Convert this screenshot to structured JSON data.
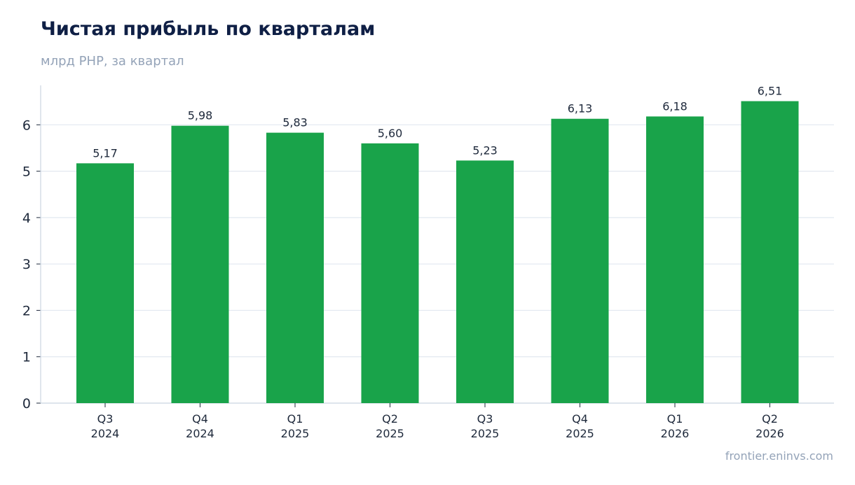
{
  "title": "Чистая прибыль по кварталам",
  "subtitle": "млрд PHP, за квартал",
  "footer": "frontier.eninvs.com",
  "colors": {
    "bar": "#19a34a",
    "grid": "#e2e8f0",
    "axis": "#cbd5e1",
    "title": "#0f1f45",
    "text": "#1e293b",
    "muted": "#94a3b8"
  },
  "chart_data": {
    "type": "bar",
    "categories": [
      [
        "Q3",
        "2024"
      ],
      [
        "Q4",
        "2024"
      ],
      [
        "Q1",
        "2025"
      ],
      [
        "Q2",
        "2025"
      ],
      [
        "Q3",
        "2025"
      ],
      [
        "Q4",
        "2025"
      ],
      [
        "Q1",
        "2026"
      ],
      [
        "Q2",
        "2026"
      ]
    ],
    "values": [
      5.17,
      5.98,
      5.83,
      5.6,
      5.23,
      6.13,
      6.18,
      6.51
    ],
    "value_labels": [
      "5,17",
      "5,98",
      "5,83",
      "5,60",
      "5,23",
      "6,13",
      "6,18",
      "6,51"
    ],
    "yticks": [
      0,
      1,
      2,
      3,
      4,
      5,
      6
    ],
    "ylim": [
      0,
      6.85
    ],
    "grid": true,
    "legend": "none"
  }
}
